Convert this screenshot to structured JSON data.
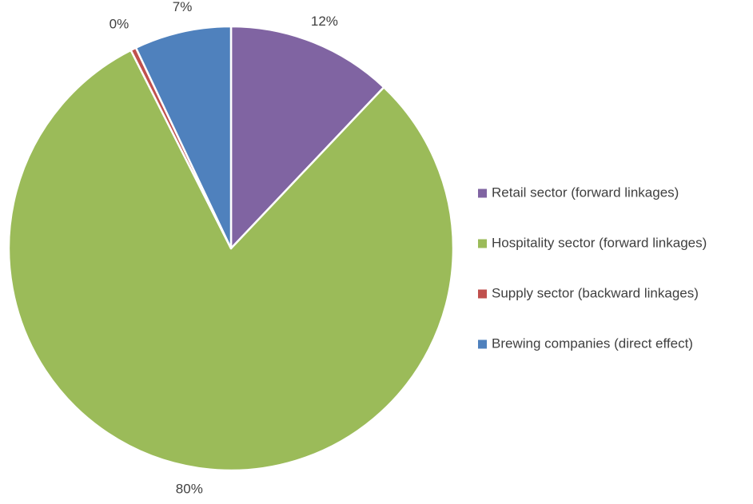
{
  "chart_data": {
    "type": "pie",
    "title": "",
    "start_angle_deg": 0,
    "direction": "clockwise",
    "legend_position": "right",
    "slices": [
      {
        "label": "Retail sector (forward linkages)",
        "value": 12,
        "display": "12%",
        "color": "#8064a2"
      },
      {
        "label": "Hospitality sector (forward linkages)",
        "value": 80,
        "display": "80%",
        "color": "#9bbb59"
      },
      {
        "label": "Supply sector (backward linkages)",
        "value": 0.4,
        "display": "0%",
        "color": "#c0504d"
      },
      {
        "label": "Brewing companies (direct effect)",
        "value": 7,
        "display": "7%",
        "color": "#4f81bd"
      }
    ]
  }
}
